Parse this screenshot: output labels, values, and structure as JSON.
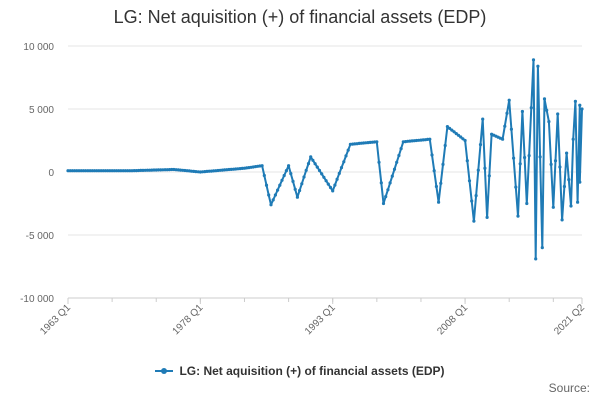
{
  "chart_data": {
    "type": "line",
    "title": "LG: Net aquisition (+) of financial assets (EDP)",
    "x_start": "1963 Q1",
    "x_end": "2021 Q2",
    "x_tick_labels": [
      "1963 Q1",
      "1978 Q1",
      "1993 Q1",
      "2008 Q1",
      "2021 Q2"
    ],
    "ylim": [
      -10000,
      10000
    ],
    "y_ticks": [
      -10000,
      -5000,
      0,
      5000,
      10000
    ],
    "y_tick_labels": [
      "-10 000",
      "-5 000",
      "0",
      "5 000",
      "10 000"
    ],
    "grid": "horizontal",
    "legend_position": "bottom",
    "series": [
      {
        "name": "LG: Net aquisition (+) of financial assets (EDP)",
        "color": "#1f7bb6",
        "keypoints": [
          [
            "1963 Q1",
            100
          ],
          [
            "1970 Q1",
            100
          ],
          [
            "1975 Q1",
            200
          ],
          [
            "1978 Q1",
            0
          ],
          [
            "1983 Q1",
            300
          ],
          [
            "1985 Q1",
            500
          ],
          [
            "1986 Q1",
            -2600
          ],
          [
            "1988 Q1",
            500
          ],
          [
            "1989 Q1",
            -2000
          ],
          [
            "1990 Q3",
            1200
          ],
          [
            "1993 Q1",
            -1500
          ],
          [
            "1995 Q1",
            2200
          ],
          [
            "1998 Q1",
            2400
          ],
          [
            "1998 Q4",
            -2500
          ],
          [
            "2001 Q1",
            2400
          ],
          [
            "2004 Q1",
            2600
          ],
          [
            "2005 Q1",
            -2400
          ],
          [
            "2006 Q1",
            3600
          ],
          [
            "2008 Q1",
            2500
          ],
          [
            "2009 Q1",
            -3900
          ],
          [
            "2010 Q1",
            4200
          ],
          [
            "2010 Q3",
            -3600
          ],
          [
            "2011 Q1",
            3000
          ],
          [
            "2012 Q2",
            2600
          ],
          [
            "2013 Q1",
            5700
          ],
          [
            "2014 Q1",
            -3500
          ],
          [
            "2014 Q3",
            4800
          ],
          [
            "2015 Q1",
            -2500
          ],
          [
            "2015 Q4",
            8900
          ],
          [
            "2016 Q1",
            -6900
          ],
          [
            "2016 Q2",
            8400
          ],
          [
            "2016 Q4",
            -6000
          ],
          [
            "2017 Q1",
            5800
          ],
          [
            "2017 Q3",
            4000
          ],
          [
            "2018 Q1",
            -2800
          ],
          [
            "2018 Q3",
            4600
          ],
          [
            "2019 Q1",
            -3800
          ],
          [
            "2019 Q3",
            1500
          ],
          [
            "2020 Q1",
            -2700
          ],
          [
            "2020 Q2",
            2600
          ],
          [
            "2020 Q3",
            5600
          ],
          [
            "2020 Q4",
            -2400
          ],
          [
            "2021 Q1",
            5300
          ],
          [
            "2021 Q1",
            -800
          ],
          [
            "2021 Q2",
            5000
          ]
        ]
      }
    ]
  },
  "legend": {
    "label": "LG: Net aquisition (+) of financial assets (EDP)"
  },
  "source": {
    "label": "Source:"
  }
}
